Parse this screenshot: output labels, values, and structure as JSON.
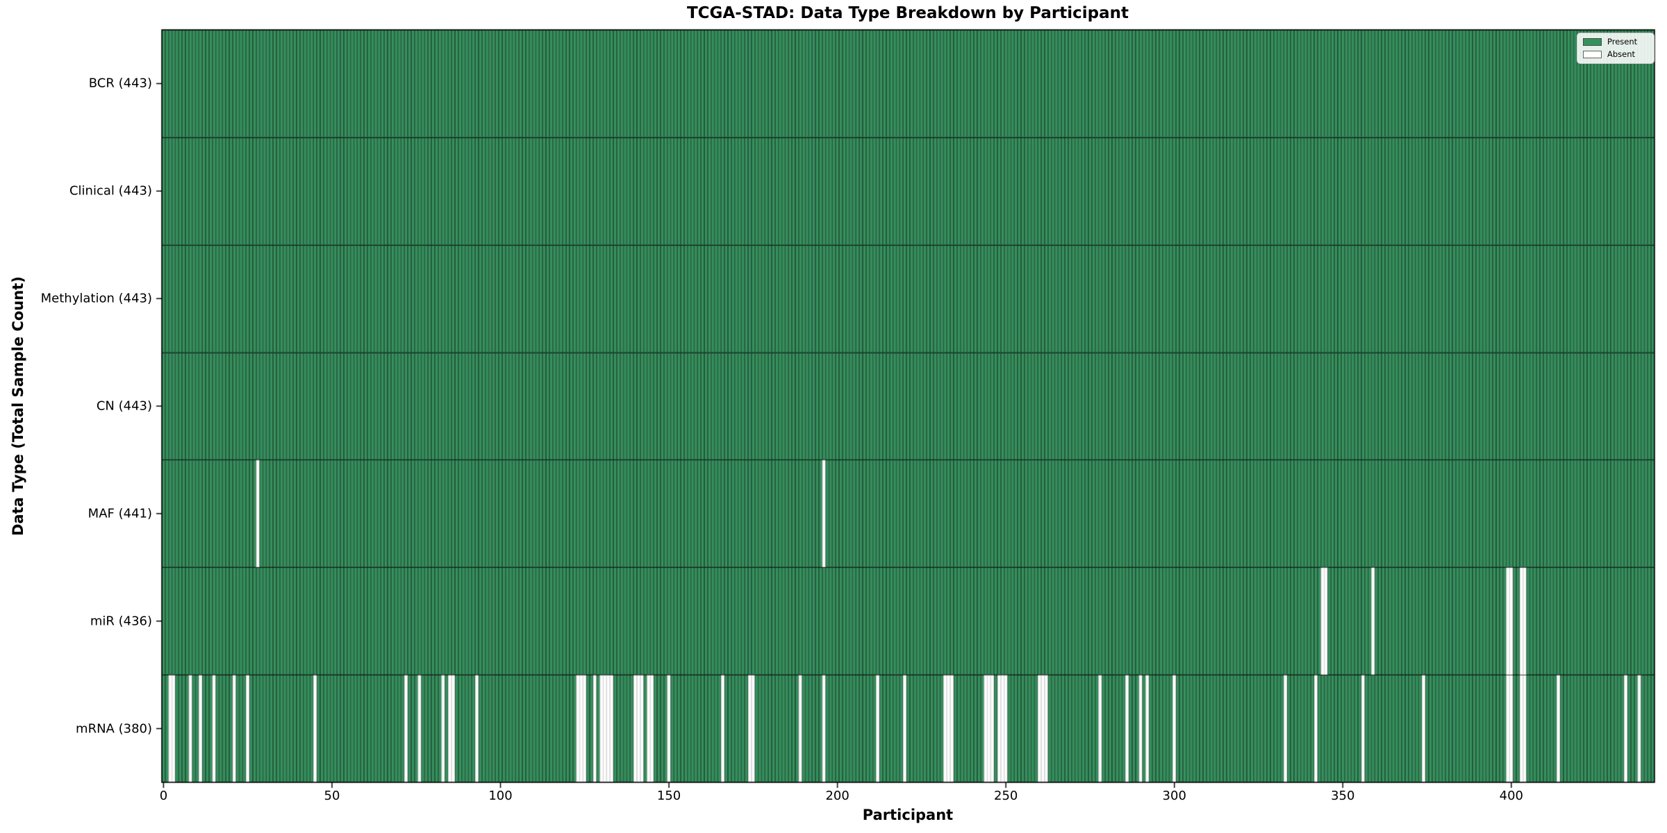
{
  "colors": {
    "present": "#35925e",
    "absent": "#ffffff",
    "cell_edge": "#1d3b2a",
    "absent_edge": "#c8c8c8",
    "row_divider": "#1a1a1a",
    "spine": "#000000",
    "legend_border": "#cccccc",
    "text": "#000000"
  },
  "chart_data": {
    "type": "heatmap",
    "title": "TCGA-STAD: Data Type Breakdown by Participant",
    "xlabel": "Participant",
    "ylabel": "Data Type (Total Sample Count)",
    "n_participants": 443,
    "xlim": [
      -0.5,
      442.5
    ],
    "x_ticks": [
      0,
      50,
      100,
      150,
      200,
      250,
      300,
      350,
      400
    ],
    "grid": false,
    "legend": {
      "position": "upper right",
      "entries": [
        {
          "label": "Present",
          "color": "#35925e"
        },
        {
          "label": "Absent",
          "color": "#ffffff"
        }
      ]
    },
    "cell_states": {
      "present": 1,
      "absent": 0
    },
    "rows": [
      {
        "label": "BCR (443)",
        "name": "BCR",
        "total": 443,
        "absent_participants": []
      },
      {
        "label": "Clinical (443)",
        "name": "Clinical",
        "total": 443,
        "absent_participants": []
      },
      {
        "label": "Methylation (443)",
        "name": "Methylation",
        "total": 443,
        "absent_participants": []
      },
      {
        "label": "CN (443)",
        "name": "CN",
        "total": 443,
        "absent_participants": []
      },
      {
        "label": "MAF (441)",
        "name": "MAF",
        "total": 441,
        "absent_participants": [
          28,
          196
        ]
      },
      {
        "label": "miR (436)",
        "name": "miR",
        "total": 436,
        "absent_participants": [
          344,
          345,
          359,
          399,
          400,
          403,
          404
        ]
      },
      {
        "label": "mRNA (380)",
        "name": "mRNA",
        "total": 380,
        "absent_participants": [
          2,
          3,
          8,
          11,
          15,
          21,
          25,
          45,
          72,
          76,
          83,
          85,
          86,
          93,
          123,
          124,
          125,
          128,
          130,
          131,
          132,
          133,
          140,
          141,
          142,
          144,
          145,
          150,
          166,
          174,
          175,
          189,
          196,
          212,
          220,
          232,
          233,
          234,
          244,
          245,
          246,
          248,
          249,
          250,
          260,
          261,
          262,
          278,
          286,
          290,
          292,
          300,
          333,
          342,
          356,
          374,
          399,
          400,
          403,
          404,
          414,
          434,
          438
        ]
      }
    ]
  }
}
